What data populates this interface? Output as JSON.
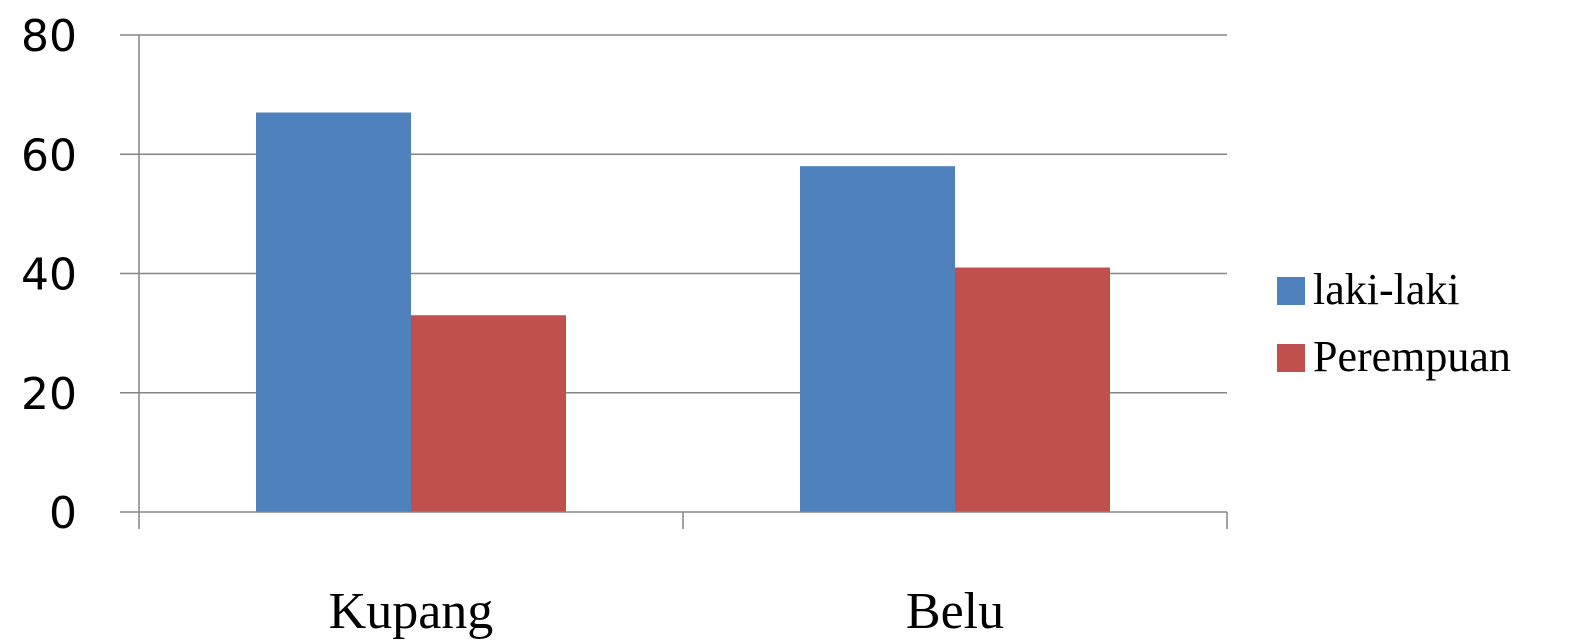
{
  "chart_data": {
    "type": "bar",
    "categories": [
      "Kupang",
      "Belu"
    ],
    "series": [
      {
        "name": "laki-laki",
        "values": [
          67,
          58
        ],
        "color": "#4F81BD"
      },
      {
        "name": "Perempuan",
        "values": [
          33,
          41
        ],
        "color": "#C0504D"
      }
    ],
    "yticks": [
      "0",
      "20",
      "40",
      "60",
      "80"
    ],
    "ylim": [
      0,
      80
    ],
    "grid": true,
    "legend_position": "right"
  }
}
